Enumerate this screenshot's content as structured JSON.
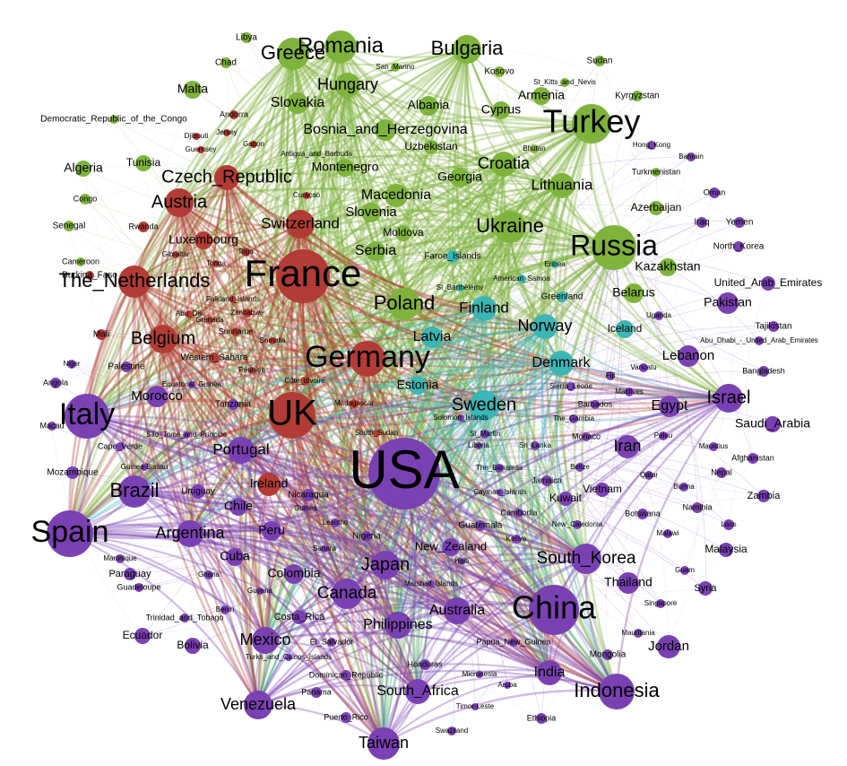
{
  "nodes": [
    {
      "label": "Romania",
      "color": "#7fb33c"
    },
    {
      "label": "Greece",
      "color": "#7fb33c"
    },
    {
      "label": "Bulgaria",
      "color": "#7fb33c"
    },
    {
      "label": "Libya",
      "color": "#7fb33c"
    },
    {
      "label": "Chad",
      "color": "#7fb33c"
    },
    {
      "label": "Malta",
      "color": "#7fb33c"
    },
    {
      "label": "Hungary",
      "color": "#7fb33c"
    },
    {
      "label": "San_Marino",
      "color": "#7fb33c"
    },
    {
      "label": "Kosovo",
      "color": "#7fb33c"
    },
    {
      "label": "Sudan",
      "color": "#7fb33c"
    },
    {
      "label": "St_Kitts_and_Nevis",
      "color": "#7fb33c"
    },
    {
      "label": "Kyrgyzstan",
      "color": "#7fb33c"
    },
    {
      "label": "Armenia",
      "color": "#7fb33c"
    },
    {
      "label": "Slovakia",
      "color": "#7fb33c"
    },
    {
      "label": "Albania",
      "color": "#7fb33c"
    },
    {
      "label": "Cyprus",
      "color": "#7fb33c"
    },
    {
      "label": "Turkey",
      "color": "#7fb33c"
    },
    {
      "label": "Democratic_Republic_of_the_Congo",
      "color": "#7fb33c"
    },
    {
      "label": "Bosnia_and_Herzegovina",
      "color": "#7fb33c"
    },
    {
      "label": "Bhutan",
      "color": "#7fb33c"
    },
    {
      "label": "Uzbekistan",
      "color": "#7fb33c"
    },
    {
      "label": "Algeria",
      "color": "#7fb33c"
    },
    {
      "label": "Tunisia",
      "color": "#7fb33c"
    },
    {
      "label": "Antigua_and_Barbuda",
      "color": "#7fb33c"
    },
    {
      "label": "Montenegro",
      "color": "#7fb33c"
    },
    {
      "label": "Georgia",
      "color": "#7fb33c"
    },
    {
      "label": "Croatia",
      "color": "#7fb33c"
    },
    {
      "label": "Lithuania",
      "color": "#7fb33c"
    },
    {
      "label": "Turkmenistan",
      "color": "#7fb33c"
    },
    {
      "label": "Congo",
      "color": "#7fb33c"
    },
    {
      "label": "Macedonia",
      "color": "#7fb33c"
    },
    {
      "label": "Slovenia",
      "color": "#7fb33c"
    },
    {
      "label": "Azerbaijan",
      "color": "#7fb33c"
    },
    {
      "label": "Senegal",
      "color": "#7fb33c"
    },
    {
      "label": "Moldova",
      "color": "#7fb33c"
    },
    {
      "label": "Ukraine",
      "color": "#7fb33c"
    },
    {
      "label": "Serbia",
      "color": "#7fb33c"
    },
    {
      "label": "Russia",
      "color": "#7fb33c"
    },
    {
      "label": "Kazakhstan",
      "color": "#7fb33c"
    },
    {
      "label": "Cameroon",
      "color": "#7fb33c"
    },
    {
      "label": "Belarus",
      "color": "#7fb33c"
    },
    {
      "label": "Poland",
      "color": "#7fb33c"
    },
    {
      "label": "Andorra",
      "color": "#b23c35"
    },
    {
      "label": "Djibouti",
      "color": "#b23c35"
    },
    {
      "label": "Jersey",
      "color": "#b23c35"
    },
    {
      "label": "Gabon",
      "color": "#b23c35"
    },
    {
      "label": "Guernsey",
      "color": "#b23c35"
    },
    {
      "label": "Czech_Republic",
      "color": "#b23c35"
    },
    {
      "label": "Austria",
      "color": "#b23c35"
    },
    {
      "label": "Curaçao",
      "color": "#b23c35"
    },
    {
      "label": "Switzerland",
      "color": "#b23c35"
    },
    {
      "label": "Rwanda",
      "color": "#b23c35"
    },
    {
      "label": "Luxembourg",
      "color": "#b23c35"
    },
    {
      "label": "Togo",
      "color": "#b23c35"
    },
    {
      "label": "Gibraltar",
      "color": "#b23c35"
    },
    {
      "label": "Tonga",
      "color": "#b23c35"
    },
    {
      "label": "France",
      "color": "#b23c35"
    },
    {
      "label": "The_Netherlands",
      "color": "#b23c35"
    },
    {
      "label": "Burkina_Faso",
      "color": "#b23c35"
    },
    {
      "label": "Falkland_Islands",
      "color": "#b23c35"
    },
    {
      "label": "Abu_Dis",
      "color": "#b23c35"
    },
    {
      "label": "Zimbabwe",
      "color": "#b23c35"
    },
    {
      "label": "Grenada",
      "color": "#b23c35"
    },
    {
      "label": "Suriname",
      "color": "#b23c35"
    },
    {
      "label": "Somalia",
      "color": "#b23c35"
    },
    {
      "label": "Mali",
      "color": "#b23c35"
    },
    {
      "label": "Belgium",
      "color": "#b23c35"
    },
    {
      "label": "Western_Sahara",
      "color": "#b23c35"
    },
    {
      "label": "Réunion",
      "color": "#b23c35"
    },
    {
      "label": "Germany",
      "color": "#b23c35"
    },
    {
      "label": "Côte_dIvoire",
      "color": "#b23c35"
    },
    {
      "label": "Madagascar",
      "color": "#b23c35"
    },
    {
      "label": "UK",
      "color": "#b23c35"
    },
    {
      "label": "South_Sudan",
      "color": "#b23c35"
    },
    {
      "label": "Ireland",
      "color": "#b23c35"
    },
    {
      "label": "Faroe_Islands",
      "color": "#3cb5b5"
    },
    {
      "label": "Eritrea",
      "color": "#3cb5b5"
    },
    {
      "label": "American_Samoa",
      "color": "#3cb5b5"
    },
    {
      "label": "St_Barthélemy",
      "color": "#3cb5b5"
    },
    {
      "label": "Greenland",
      "color": "#3cb5b5"
    },
    {
      "label": "Finland",
      "color": "#3cb5b5"
    },
    {
      "label": "Norway",
      "color": "#3cb5b5"
    },
    {
      "label": "Iceland",
      "color": "#3cb5b5"
    },
    {
      "label": "Latvia",
      "color": "#3cb5b5"
    },
    {
      "label": "Denmark",
      "color": "#3cb5b5"
    },
    {
      "label": "Estonia",
      "color": "#3cb5b5"
    },
    {
      "label": "Sweden",
      "color": "#3cb5b5"
    },
    {
      "label": "United_Arab_Emirates",
      "color": "#7a41b3"
    },
    {
      "label": "Oman",
      "color": "#7a41b3"
    },
    {
      "label": "Iraq",
      "color": "#7a41b3"
    },
    {
      "label": "Yemen",
      "color": "#7a41b3"
    },
    {
      "label": "North_Korea",
      "color": "#7a41b3"
    },
    {
      "label": "Pakistan",
      "color": "#7a41b3"
    },
    {
      "label": "Uganda",
      "color": "#7a41b3"
    },
    {
      "label": "Tajikistan",
      "color": "#7a41b3"
    },
    {
      "label": "Abu_Dhabi_-_United_Arab_Emirates",
      "color": "#7a41b3"
    },
    {
      "label": "Lebanon",
      "color": "#7a41b3"
    },
    {
      "label": "Bangladesh",
      "color": "#7a41b3"
    },
    {
      "label": "Israel",
      "color": "#7a41b3"
    },
    {
      "label": "Saudi_Arabia",
      "color": "#7a41b3"
    },
    {
      "label": "Egypt",
      "color": "#7a41b3"
    },
    {
      "label": "Fiji",
      "color": "#7a41b3"
    },
    {
      "label": "Vanuatu",
      "color": "#7a41b3"
    },
    {
      "label": "Maldives",
      "color": "#7a41b3"
    },
    {
      "label": "Sierra_Leone",
      "color": "#7a41b3"
    },
    {
      "label": "Barbados",
      "color": "#7a41b3"
    },
    {
      "label": "The_Gambia",
      "color": "#7a41b3"
    },
    {
      "label": "Palau",
      "color": "#7a41b3"
    },
    {
      "label": "Iran",
      "color": "#7a41b3"
    },
    {
      "label": "Mauritius",
      "color": "#7a41b3"
    },
    {
      "label": "Afghanistan",
      "color": "#7a41b3"
    },
    {
      "label": "Nepal",
      "color": "#7a41b3"
    },
    {
      "label": "Monaco",
      "color": "#7a41b3"
    },
    {
      "label": "St_Martin",
      "color": "#7a41b3"
    },
    {
      "label": "Liberia",
      "color": "#7a41b3"
    },
    {
      "label": "Sri_Lanka",
      "color": "#7a41b3"
    },
    {
      "label": "Solomon_Islands",
      "color": "#7a41b3"
    },
    {
      "label": "Zambia",
      "color": "#7a41b3"
    },
    {
      "label": "Qatar",
      "color": "#7a41b3"
    },
    {
      "label": "Burma",
      "color": "#7a41b3"
    },
    {
      "label": "Belize",
      "color": "#7a41b3"
    },
    {
      "label": "The_Bahamas",
      "color": "#7a41b3"
    },
    {
      "label": "Vietnam",
      "color": "#7a41b3"
    },
    {
      "label": "Kuwait",
      "color": "#7a41b3"
    },
    {
      "label": "Jamaica",
      "color": "#7a41b3"
    },
    {
      "label": "Namibia",
      "color": "#7a41b3"
    },
    {
      "label": "Cayman_Islands",
      "color": "#7a41b3"
    },
    {
      "label": "Cambodia",
      "color": "#7a41b3"
    },
    {
      "label": "Botswana",
      "color": "#7a41b3"
    },
    {
      "label": "Laos",
      "color": "#7a41b3"
    },
    {
      "label": "New_Caledonia",
      "color": "#7a41b3"
    },
    {
      "label": "Guatemala",
      "color": "#7a41b3"
    },
    {
      "label": "Malawi",
      "color": "#7a41b3"
    },
    {
      "label": "Malaysia",
      "color": "#7a41b3"
    },
    {
      "label": "Kenya",
      "color": "#7a41b3"
    },
    {
      "label": "New_Zealand",
      "color": "#7a41b3"
    },
    {
      "label": "South_Korea",
      "color": "#7a41b3"
    },
    {
      "label": "Haiti",
      "color": "#7a41b3"
    },
    {
      "label": "Guam",
      "color": "#7a41b3"
    },
    {
      "label": "Thailand",
      "color": "#7a41b3"
    },
    {
      "label": "Syria",
      "color": "#7a41b3"
    },
    {
      "label": "China",
      "color": "#7a41b3"
    },
    {
      "label": "Singapore",
      "color": "#7a41b3"
    },
    {
      "label": "Japan",
      "color": "#7a41b3"
    },
    {
      "label": "Marshall_Islands",
      "color": "#7a41b3"
    },
    {
      "label": "Australia",
      "color": "#7a41b3"
    },
    {
      "label": "Mauritania",
      "color": "#7a41b3"
    },
    {
      "label": "Mongolia",
      "color": "#7a41b3"
    },
    {
      "label": "Jordan",
      "color": "#7a41b3"
    },
    {
      "label": "Papua_New_Guinea",
      "color": "#7a41b3"
    },
    {
      "label": "India",
      "color": "#7a41b3"
    },
    {
      "label": "Indonesia",
      "color": "#7a41b3"
    },
    {
      "label": "Micronesia",
      "color": "#7a41b3"
    },
    {
      "label": "Aruba",
      "color": "#7a41b3"
    },
    {
      "label": "Ethiopia",
      "color": "#7a41b3"
    },
    {
      "label": "Timor-Leste",
      "color": "#7a41b3"
    },
    {
      "label": "Swaziland",
      "color": "#7a41b3"
    },
    {
      "label": "Taiwan",
      "color": "#7a41b3"
    },
    {
      "label": "South_Africa",
      "color": "#7a41b3"
    },
    {
      "label": "Honduras",
      "color": "#7a41b3"
    },
    {
      "label": "Philippines",
      "color": "#7a41b3"
    },
    {
      "label": "Canada",
      "color": "#7a41b3"
    },
    {
      "label": "El_Salvador",
      "color": "#7a41b3"
    },
    {
      "label": "Costa_Rica",
      "color": "#7a41b3"
    },
    {
      "label": "Dominican_Republic",
      "color": "#7a41b3"
    },
    {
      "label": "Turks_and_Caicos_Islands",
      "color": "#7a41b3"
    },
    {
      "label": "Panama",
      "color": "#7a41b3"
    },
    {
      "label": "Puerto_Rico",
      "color": "#7a41b3"
    },
    {
      "label": "Mexico",
      "color": "#7a41b3"
    },
    {
      "label": "Venezuela",
      "color": "#7a41b3"
    },
    {
      "label": "Colombia",
      "color": "#7a41b3"
    },
    {
      "label": "Peru",
      "color": "#7a41b3"
    },
    {
      "label": "Cuba",
      "color": "#7a41b3"
    },
    {
      "label": "Guyana",
      "color": "#7a41b3"
    },
    {
      "label": "Benin",
      "color": "#7a41b3"
    },
    {
      "label": "Ghana",
      "color": "#7a41b3"
    },
    {
      "label": "Bolivia",
      "color": "#7a41b3"
    },
    {
      "label": "Ecuador",
      "color": "#7a41b3"
    },
    {
      "label": "Trinidad_and_Tobago",
      "color": "#7a41b3"
    },
    {
      "label": "Guadeloupe",
      "color": "#7a41b3"
    },
    {
      "label": "Paraguay",
      "color": "#7a41b3"
    },
    {
      "label": "Martinique",
      "color": "#7a41b3"
    },
    {
      "label": "Argentina",
      "color": "#7a41b3"
    },
    {
      "label": "Spain",
      "color": "#7a41b3"
    },
    {
      "label": "Brazil",
      "color": "#7a41b3"
    },
    {
      "label": "Uruguay",
      "color": "#7a41b3"
    },
    {
      "label": "Chile",
      "color": "#7a41b3"
    },
    {
      "label": "Guinea-Bissau",
      "color": "#7a41b3"
    },
    {
      "label": "Cape_Verde",
      "color": "#7a41b3"
    },
    {
      "label": "Mozambique",
      "color": "#7a41b3"
    },
    {
      "label": "Macau",
      "color": "#7a41b3"
    },
    {
      "label": "Italy",
      "color": "#7a41b3"
    },
    {
      "label": "São_Tomé_and_Príncipe",
      "color": "#7a41b3"
    },
    {
      "label": "Portugal",
      "color": "#7a41b3"
    },
    {
      "label": "Tanzania",
      "color": "#7a41b3"
    },
    {
      "label": "Equatorial_Guinea",
      "color": "#7a41b3"
    },
    {
      "label": "Morocco",
      "color": "#7a41b3"
    },
    {
      "label": "Palestine",
      "color": "#7a41b3"
    },
    {
      "label": "Angola",
      "color": "#7a41b3"
    },
    {
      "label": "Niger",
      "color": "#7a41b3"
    },
    {
      "label": "Nicaragua",
      "color": "#7a41b3"
    },
    {
      "label": "Guinea",
      "color": "#7a41b3"
    },
    {
      "label": "Lesotho",
      "color": "#7a41b3"
    },
    {
      "label": "Sahara",
      "color": "#7a41b3"
    },
    {
      "label": "Nigeria",
      "color": "#7a41b3"
    },
    {
      "label": "USA",
      "color": "#7a41b3"
    },
    {
      "label": "Hong_Kong",
      "color": "#7a41b3"
    },
    {
      "label": "Bahrain",
      "color": "#7a41b3"
    }
  ]
}
